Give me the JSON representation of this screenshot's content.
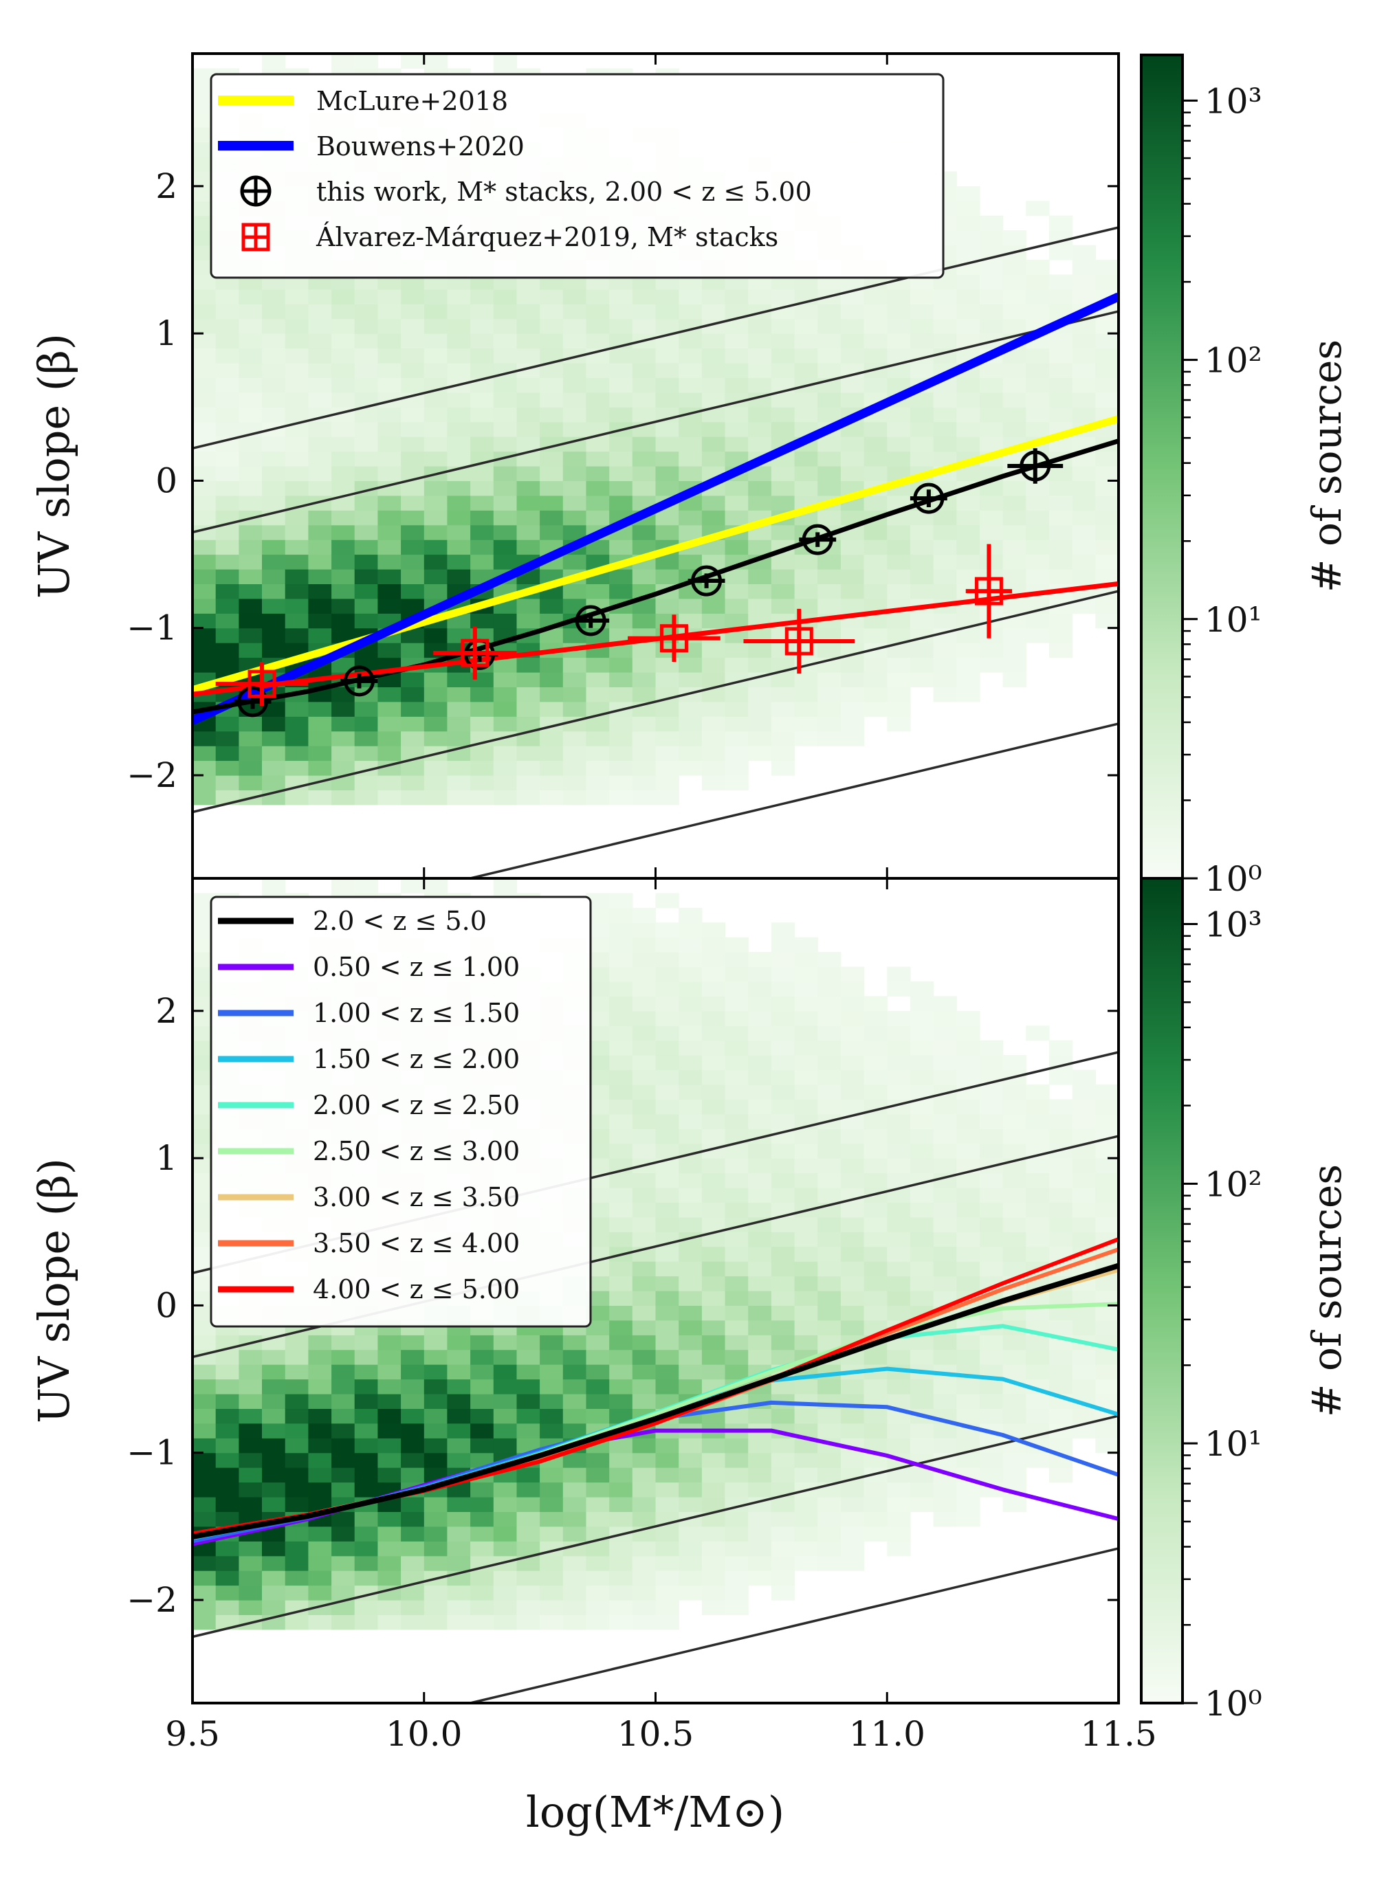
{
  "chart_data": [
    {
      "type": "scatter",
      "panel": "top",
      "xlabel": "",
      "ylabel": "UV slope (β)",
      "xlim": [
        9.5,
        11.5
      ],
      "ylim": [
        -2.7,
        2.9
      ],
      "yticks": [
        2,
        1,
        0,
        -1,
        -2
      ],
      "ytick_labels": [
        "2",
        "1",
        "0",
        "−1",
        "−2"
      ],
      "legend_position": "top-left",
      "legend": [
        {
          "label": "McLure+2018",
          "color": "#ffff00",
          "kind": "line"
        },
        {
          "label": "Bouwens+2020",
          "color": "#0000ff",
          "kind": "line"
        },
        {
          "label": "this work, M* stacks, 2.00 < z ≤ 5.00",
          "color": "#000000",
          "kind": "circle-marker"
        },
        {
          "label": "Álvarez-Márquez+2019, M* stacks",
          "color": "#ff0000",
          "kind": "square-marker"
        }
      ],
      "series": [
        {
          "name": "McLure+2018",
          "color": "#ffff00",
          "x": [
            9.5,
            11.5
          ],
          "y": [
            -1.42,
            0.42
          ]
        },
        {
          "name": "Bouwens+2020",
          "color": "#0000ff",
          "x": [
            9.5,
            11.5
          ],
          "y": [
            -1.63,
            1.25
          ]
        },
        {
          "name": "this work fit",
          "color": "#000000",
          "x": [
            9.5,
            9.75,
            10.0,
            10.25,
            10.5,
            10.75,
            11.0,
            11.25,
            11.5
          ],
          "y": [
            -1.57,
            -1.43,
            -1.25,
            -1.02,
            -0.77,
            -0.5,
            -0.23,
            0.03,
            0.27
          ]
        },
        {
          "name": "Álvarez-Márquez+2019 fit",
          "color": "#ff0000",
          "x": [
            9.5,
            11.5
          ],
          "y": [
            -1.45,
            -0.7
          ]
        }
      ],
      "points": [
        {
          "name": "this work, M* stacks",
          "color": "#000000",
          "x": [
            9.63,
            9.86,
            10.12,
            10.36,
            10.61,
            10.85,
            11.09,
            11.32
          ],
          "y": [
            -1.5,
            -1.36,
            -1.18,
            -0.95,
            -0.68,
            -0.4,
            -0.12,
            0.1
          ],
          "xerr": [
            0.04,
            0.04,
            0.04,
            0.04,
            0.04,
            0.04,
            0.04,
            0.06
          ],
          "yerr": [
            0.05,
            0.05,
            0.05,
            0.05,
            0.05,
            0.05,
            0.06,
            0.12
          ]
        },
        {
          "name": "Álvarez-Márquez+2019, M* stacks",
          "color": "#ff0000",
          "x": [
            9.65,
            10.11,
            10.54,
            10.81,
            11.22
          ],
          "y": [
            -1.38,
            -1.17,
            -1.07,
            -1.09,
            -0.75
          ],
          "xerr": [
            0.1,
            0.09,
            0.1,
            0.12,
            0.05
          ],
          "yerr": [
            0.15,
            0.18,
            0.16,
            0.22,
            0.32
          ]
        }
      ],
      "colorbar": {
        "label": "# of sources",
        "scale": "log",
        "range": [
          1,
          1500
        ],
        "ticks": [
          1,
          10,
          100,
          1000
        ],
        "tick_labels": [
          "10⁰",
          "10¹",
          "10²",
          "10³"
        ]
      }
    },
    {
      "type": "line",
      "panel": "bottom",
      "xlabel": "log(M*/M⊙)",
      "ylabel": "UV slope (β)",
      "xlim": [
        9.5,
        11.5
      ],
      "ylim": [
        -2.7,
        2.9
      ],
      "xticks": [
        9.5,
        10.0,
        10.5,
        11.0,
        11.5
      ],
      "xtick_labels": [
        "9.5",
        "10.0",
        "10.5",
        "11.0",
        "11.5"
      ],
      "yticks": [
        2,
        1,
        0,
        -1,
        -2
      ],
      "ytick_labels": [
        "2",
        "1",
        "0",
        "−1",
        "−2"
      ],
      "legend_position": "top-left",
      "x": [
        9.5,
        9.75,
        10.0,
        10.25,
        10.5,
        10.75,
        11.0,
        11.25,
        11.5
      ],
      "series": [
        {
          "name": "0.50 < z ≤ 1.00",
          "color": "#7f00ff",
          "values": [
            -1.62,
            -1.45,
            -1.22,
            -0.99,
            -0.85,
            -0.85,
            -1.02,
            -1.25,
            -1.45
          ]
        },
        {
          "name": "1.00 < z ≤ 1.50",
          "color": "#3366ee",
          "values": [
            -1.6,
            -1.44,
            -1.23,
            -0.98,
            -0.77,
            -0.66,
            -0.69,
            -0.88,
            -1.15
          ]
        },
        {
          "name": "1.50 < z ≤ 2.00",
          "color": "#1ec0e6",
          "values": [
            -1.58,
            -1.43,
            -1.24,
            -1.0,
            -0.73,
            -0.51,
            -0.43,
            -0.5,
            -0.74
          ]
        },
        {
          "name": "2.00 < z ≤ 2.50",
          "color": "#55f5cc",
          "values": [
            -1.57,
            -1.43,
            -1.25,
            -1.01,
            -0.73,
            -0.44,
            -0.22,
            -0.14,
            -0.3
          ]
        },
        {
          "name": "2.50 < z ≤ 3.00",
          "color": "#a8f5a8",
          "values": [
            -1.57,
            -1.43,
            -1.25,
            -1.01,
            -0.74,
            -0.45,
            -0.18,
            -0.02,
            0.01
          ]
        },
        {
          "name": "3.00 < z ≤ 3.50",
          "color": "#ecc87c",
          "values": [
            -1.56,
            -1.42,
            -1.25,
            -1.02,
            -0.77,
            -0.49,
            -0.22,
            0.02,
            0.24
          ]
        },
        {
          "name": "3.50 < z ≤ 4.00",
          "color": "#ff6a3c",
          "values": [
            -1.55,
            -1.42,
            -1.25,
            -1.04,
            -0.8,
            -0.51,
            -0.19,
            0.11,
            0.38
          ]
        },
        {
          "name": "4.00 < z ≤ 5.00",
          "color": "#ff0000",
          "values": [
            -1.55,
            -1.42,
            -1.26,
            -1.06,
            -0.8,
            -0.5,
            -0.17,
            0.15,
            0.45
          ]
        },
        {
          "name": "2.0 < z ≤ 5.0",
          "color": "#000000",
          "values": [
            -1.57,
            -1.43,
            -1.25,
            -1.02,
            -0.77,
            -0.5,
            -0.23,
            0.03,
            0.27
          ]
        }
      ],
      "legend": [
        {
          "label": "2.0 < z ≤ 5.0",
          "color": "#000000"
        },
        {
          "label": "0.50 < z ≤ 1.00",
          "color": "#7f00ff"
        },
        {
          "label": "1.00 < z ≤ 1.50",
          "color": "#3366ee"
        },
        {
          "label": "1.50 < z ≤ 2.00",
          "color": "#1ec0e6"
        },
        {
          "label": "2.00 < z ≤ 2.50",
          "color": "#55f5cc"
        },
        {
          "label": "2.50 < z ≤ 3.00",
          "color": "#a8f5a8"
        },
        {
          "label": "3.00 < z ≤ 3.50",
          "color": "#ecc87c"
        },
        {
          "label": "3.50 < z ≤ 4.00",
          "color": "#ff6a3c"
        },
        {
          "label": "4.00 < z ≤ 5.00",
          "color": "#ff0000"
        }
      ],
      "colorbar": {
        "label": "# of sources",
        "scale": "log",
        "range": [
          1,
          1500
        ],
        "ticks": [
          1,
          10,
          100,
          1000
        ],
        "tick_labels": [
          "10⁰",
          "10¹",
          "10²",
          "10³"
        ]
      }
    }
  ]
}
